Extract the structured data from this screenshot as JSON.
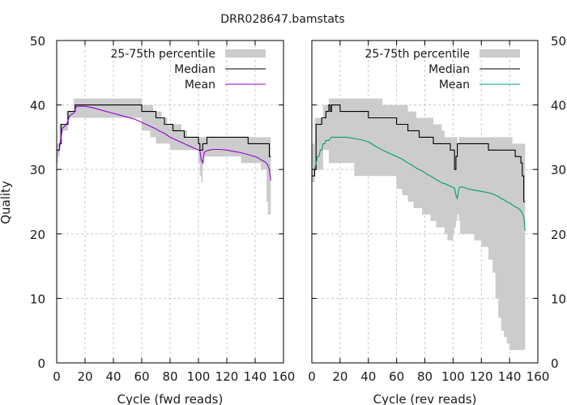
{
  "chart_data": {
    "type": "line",
    "title": "DRR028647.bamstats",
    "ylabel": "Quality",
    "ylim": [
      0,
      50
    ],
    "yticks": [
      "0",
      "10",
      "20",
      "30",
      "40",
      "50"
    ],
    "grid": true,
    "panels": [
      {
        "xlabel": "Cycle (fwd reads)",
        "xlim": [
          0,
          160
        ],
        "xticks": [
          "0",
          "20",
          "40",
          "60",
          "80",
          "100",
          "120",
          "140",
          "160"
        ],
        "ytick_side": "left",
        "legend": [
          {
            "name": "25-75th percentile",
            "kind": "band"
          },
          {
            "name": "Median",
            "kind": "line"
          },
          {
            "name": "Mean",
            "kind": "line"
          }
        ],
        "legend_position": "top-right",
        "colors": {
          "band": "#cccccc",
          "median": "#000000",
          "mean": "#9400d3"
        },
        "x": [
          1,
          2,
          3,
          4,
          5,
          6,
          7,
          8,
          9,
          10,
          11,
          12,
          13,
          14,
          15,
          16,
          17,
          18,
          19,
          20,
          25,
          30,
          35,
          40,
          45,
          50,
          55,
          60,
          62,
          64,
          66,
          68,
          70,
          72,
          74,
          76,
          78,
          80,
          82,
          84,
          86,
          88,
          90,
          92,
          94,
          96,
          98,
          100,
          101,
          102,
          103,
          104,
          105,
          106,
          108,
          110,
          115,
          120,
          125,
          130,
          135,
          138,
          140,
          142,
          144,
          146,
          148,
          149,
          150,
          151
        ],
        "q25": [
          31,
          32,
          34,
          34,
          36,
          36,
          36,
          36,
          38,
          38,
          38,
          38,
          38,
          38,
          38,
          38,
          38,
          38,
          38,
          38,
          38,
          38,
          38,
          38,
          38,
          38,
          38,
          38,
          36,
          36,
          36,
          35,
          35,
          34,
          34,
          34,
          34,
          34,
          33,
          33,
          33,
          33,
          33,
          33,
          33,
          33,
          33,
          33,
          31,
          29,
          28,
          31,
          32,
          32,
          32,
          32,
          32,
          32,
          32,
          32,
          31,
          31,
          31,
          31,
          31,
          30,
          30,
          25,
          23,
          23
        ],
        "q75": [
          34,
          34,
          37,
          37,
          37,
          37,
          37,
          39,
          39,
          39,
          39,
          39,
          41,
          41,
          41,
          41,
          41,
          41,
          41,
          41,
          41,
          41,
          41,
          41,
          41,
          41,
          41,
          41,
          40,
          40,
          40,
          40,
          39,
          39,
          39,
          38,
          38,
          37,
          37,
          37,
          37,
          37,
          36,
          36,
          35,
          35,
          35,
          35,
          35,
          35,
          35,
          35,
          35,
          35,
          35,
          35,
          35,
          35,
          35,
          35,
          35,
          35,
          35,
          35,
          35,
          35,
          35,
          35,
          35,
          35
        ],
        "median": [
          33,
          33,
          34,
          37,
          37,
          37,
          37,
          37,
          39,
          39,
          39,
          39,
          39,
          40,
          40,
          40,
          40,
          40,
          40,
          40,
          40,
          40,
          40,
          40,
          40,
          40,
          40,
          40,
          39,
          39,
          39,
          39,
          39,
          38,
          38,
          38,
          37,
          37,
          37,
          36,
          36,
          36,
          36,
          35,
          35,
          35,
          35,
          35,
          34,
          33,
          33,
          34,
          34,
          34,
          35,
          35,
          35,
          35,
          35,
          35,
          35,
          34,
          34,
          34,
          34,
          34,
          34,
          34,
          34,
          32
        ],
        "mean": [
          32.8,
          33.2,
          35,
          36.4,
          36.6,
          36.8,
          37,
          37.5,
          38.3,
          38.5,
          38.6,
          38.7,
          39.3,
          39.8,
          39.8,
          39.8,
          39.8,
          39.8,
          39.8,
          39.8,
          39.6,
          39.3,
          39,
          38.7,
          38.4,
          38.1,
          37.8,
          37.3,
          37.1,
          36.9,
          36.7,
          36.5,
          36.3,
          36,
          35.8,
          35.6,
          35.3,
          35,
          34.8,
          34.6,
          34.4,
          34.2,
          34,
          33.8,
          33.6,
          33.4,
          33.2,
          33,
          32.9,
          31.5,
          31,
          32.6,
          32.8,
          32.9,
          33,
          33.1,
          33.1,
          33,
          32.8,
          32.6,
          32.3,
          32.1,
          32,
          31.8,
          31.5,
          31.3,
          31,
          30.6,
          30,
          28.3
        ]
      },
      {
        "xlabel": "Cycle (rev reads)",
        "xlim": [
          0,
          160
        ],
        "xticks": [
          "0",
          "20",
          "40",
          "60",
          "80",
          "100",
          "120",
          "140",
          "160"
        ],
        "ytick_side": "right",
        "legend": [
          {
            "name": "25-75th percentile",
            "kind": "band"
          },
          {
            "name": "Median",
            "kind": "line"
          },
          {
            "name": "Mean",
            "kind": "line"
          }
        ],
        "legend_position": "top-right",
        "colors": {
          "band": "#cccccc",
          "median": "#000000",
          "mean": "#009e73"
        },
        "x": [
          1,
          2,
          3,
          4,
          5,
          6,
          7,
          8,
          9,
          10,
          11,
          12,
          13,
          14,
          15,
          16,
          17,
          18,
          19,
          20,
          25,
          30,
          35,
          40,
          45,
          50,
          55,
          60,
          62,
          64,
          66,
          68,
          70,
          72,
          74,
          76,
          78,
          80,
          82,
          84,
          86,
          88,
          90,
          92,
          94,
          96,
          98,
          100,
          101,
          102,
          103,
          104,
          105,
          106,
          108,
          110,
          115,
          120,
          125,
          128,
          130,
          132,
          134,
          136,
          138,
          140,
          142,
          144,
          146,
          148,
          149,
          150,
          151
        ],
        "q25": [
          28,
          28,
          30,
          30,
          30,
          30,
          30,
          30,
          33,
          33,
          33,
          33,
          31,
          31,
          31,
          31,
          31,
          31,
          31,
          31,
          31,
          31,
          29,
          29,
          29,
          29,
          29,
          29,
          27,
          27,
          26,
          26,
          25,
          25,
          24,
          24,
          24,
          23,
          23,
          23,
          22,
          22,
          21,
          21,
          21,
          20,
          19,
          19,
          20,
          21,
          22,
          23,
          22,
          20,
          20,
          20,
          20,
          19,
          18,
          16,
          14,
          10,
          7,
          5,
          4,
          3,
          2,
          2,
          2,
          2,
          2,
          2,
          2
        ],
        "q75": [
          34,
          34,
          38,
          38,
          38,
          38,
          38,
          38,
          40,
          40,
          40,
          40,
          41,
          41,
          41,
          41,
          41,
          41,
          41,
          41,
          41,
          41,
          41,
          41,
          41,
          41,
          40,
          40,
          40,
          40,
          40,
          40,
          39,
          39,
          39,
          38,
          38,
          38,
          38,
          38,
          38,
          37,
          37,
          37,
          36,
          35,
          35,
          35,
          35,
          35,
          35,
          34,
          35,
          35,
          35,
          35,
          35,
          35,
          35,
          35,
          35,
          35,
          35,
          35,
          35,
          35,
          35,
          34,
          34,
          34,
          34,
          34,
          34
        ],
        "median": [
          29,
          29,
          30,
          37,
          37,
          37,
          37,
          38,
          38,
          38,
          39,
          39,
          40,
          39,
          40,
          40,
          40,
          40,
          40,
          40,
          39,
          39,
          39,
          39,
          38,
          38,
          38,
          38,
          37,
          37,
          37,
          37,
          36,
          36,
          36,
          36,
          35,
          35,
          35,
          35,
          35,
          34,
          34,
          34,
          34,
          34,
          34,
          33,
          33,
          30,
          32,
          34,
          34,
          34,
          34,
          34,
          34,
          34,
          34,
          33,
          33,
          33,
          33,
          33,
          33,
          33,
          33,
          33,
          32,
          32,
          31,
          29,
          25
        ],
        "mean": [
          30,
          30,
          31,
          32,
          32,
          33,
          33,
          34,
          34,
          34.5,
          34.5,
          34.5,
          34.8,
          35,
          35,
          35,
          35,
          35,
          35,
          35,
          35,
          34.8,
          34.6,
          34.3,
          33.6,
          33,
          32.5,
          32,
          31.8,
          31.6,
          31.3,
          31,
          30.8,
          30.5,
          30.2,
          30,
          29.8,
          29.5,
          29.2,
          29,
          28.7,
          28.4,
          28.2,
          27.9,
          27.8,
          27.6,
          27.4,
          27.2,
          27.1,
          26,
          25.5,
          27,
          27.3,
          27.3,
          27.2,
          27,
          26.8,
          26.6,
          26.4,
          26.2,
          26,
          25.8,
          25.5,
          25.3,
          25,
          24.8,
          24.5,
          24.2,
          24,
          23.6,
          23.2,
          22.7,
          20.5
        ]
      }
    ]
  }
}
